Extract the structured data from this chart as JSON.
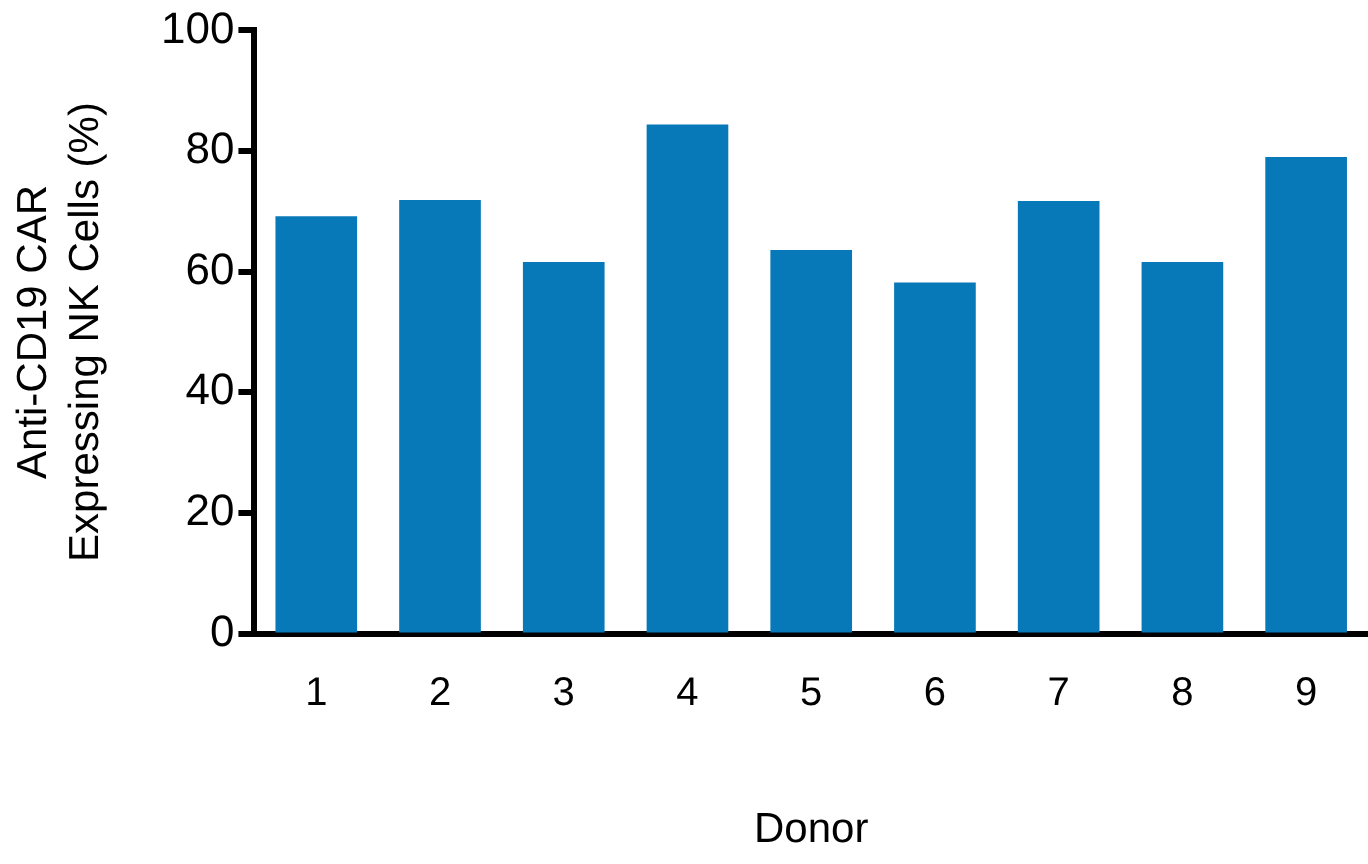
{
  "chart_data": {
    "type": "bar",
    "xlabel": "Donor",
    "ylabel": "Anti-CD19 CAR\nExpressing NK Cells (%)",
    "categories": [
      "1",
      "2",
      "3",
      "4",
      "5",
      "6",
      "7",
      "8",
      "9"
    ],
    "values": [
      69.2,
      71.9,
      61.6,
      84.4,
      63.6,
      58.2,
      71.7,
      61.6,
      79.0
    ],
    "color": "#0779b8",
    "ylim": [
      0,
      100
    ],
    "yticks": [
      0,
      20,
      40,
      60,
      80,
      100
    ],
    "grid": false,
    "legend": false
  }
}
